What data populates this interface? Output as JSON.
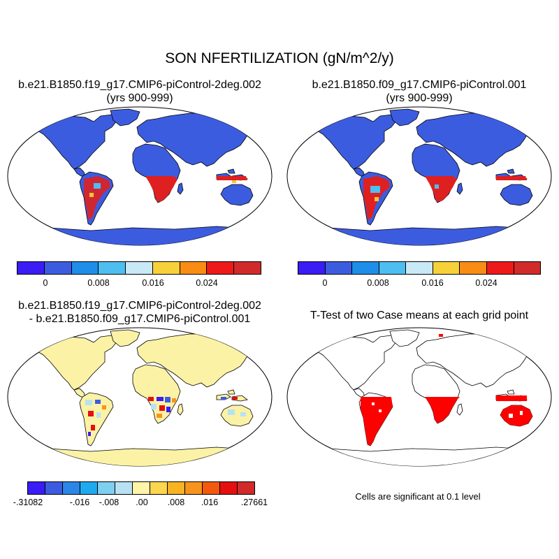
{
  "title": "SON NFERTILIZATION (gN/m^2/y)",
  "panels": [
    {
      "title_line1": "b.e21.B1850.f19_g17.CMIP6-piControl-2deg.002",
      "title_line2": "(yrs 900-999)"
    },
    {
      "title_line1": "b.e21.B1850.f09_g17.CMIP6-piControl.001",
      "title_line2": "(yrs 900-999)"
    },
    {
      "title_line1": "b.e21.B1850.f19_g17.CMIP6-piControl-2deg.002",
      "title_line2": "- b.e21.B1850.f09_g17.CMIP6-piControl.001"
    },
    {
      "title_line1": "T-Test of two Case means at each grid point",
      "note": "Cells are significant at 0.1 level"
    }
  ],
  "colorbar_top": {
    "colors": [
      "#3a1cf5",
      "#3c5ce0",
      "#1f8ee8",
      "#4ebdf0",
      "#c8e9f5",
      "#f7d13a",
      "#f98c14",
      "#ee1a1a",
      "#d12a2a"
    ],
    "tick_labels": [
      "0",
      "0.008",
      "0.016",
      "0.024"
    ]
  },
  "colorbar_diff": {
    "colors": [
      "#3a1cf5",
      "#3c5ce0",
      "#2b86e8",
      "#1faaf0",
      "#7fcff0",
      "#b8e2f2",
      "#fff4a8",
      "#fcd64e",
      "#f7b321",
      "#f7941d",
      "#f2590f",
      "#e60f0f",
      "#d12a2a"
    ],
    "tick_labels": [
      "-.31082",
      "-.016",
      "-.008",
      ".00",
      ".008",
      ".016",
      ".27661"
    ]
  },
  "colors": {
    "map_fill_top": "#3c5ce0",
    "map_fill_diff": "#fbf2a6",
    "high": "#df2020",
    "mid": "#f7c830",
    "low": "#4ebdf0",
    "significant": "#ff0000",
    "map_outline": "#000000"
  }
}
